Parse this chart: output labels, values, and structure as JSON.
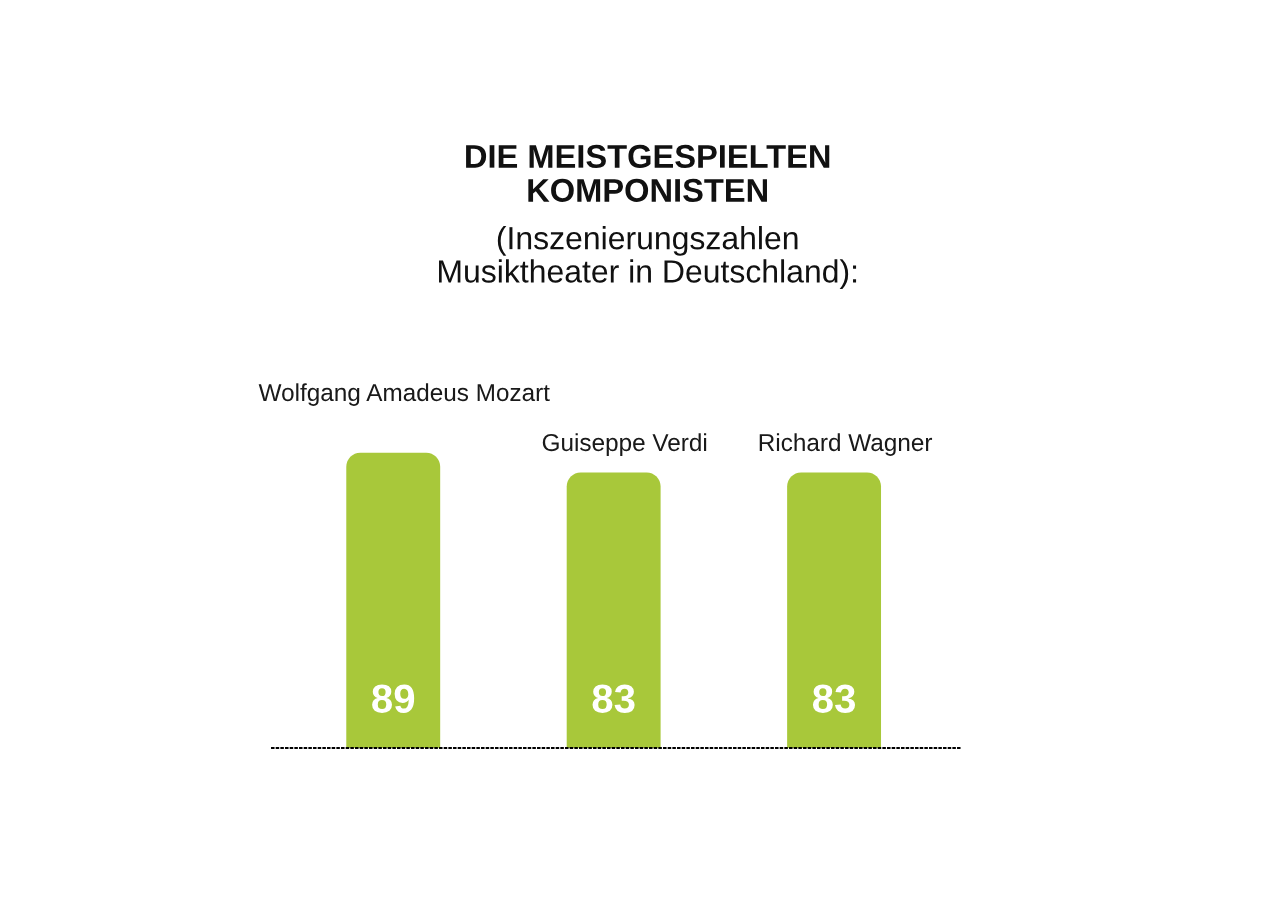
{
  "chart_data": {
    "type": "bar",
    "title": "DIE MEISTGESPIELTEN\nKOMPONISTEN",
    "subtitle": "(Inszenierungszahlen\nMusiktheater in Deutschland):",
    "categories": [
      "Wolfgang Amadeus Mozart",
      "Guiseppe Verdi",
      "Richard Wagner"
    ],
    "values": [
      89,
      83,
      83
    ],
    "color": "#a8c83a",
    "data_labels": true,
    "tick_labels": "x"
  }
}
